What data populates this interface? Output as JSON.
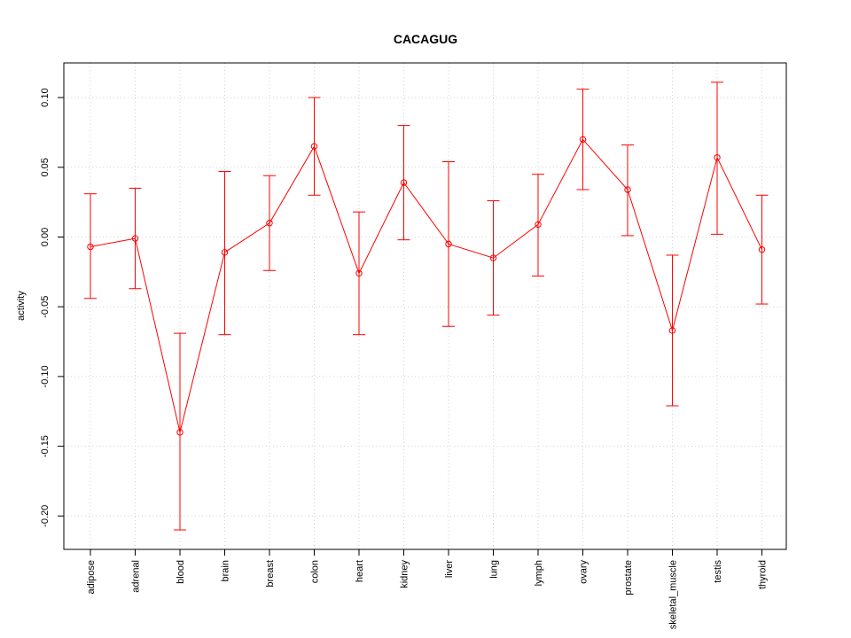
{
  "chart_data": {
    "type": "line",
    "title": "CACAGUG",
    "xlabel": "",
    "ylabel": "activity",
    "ylim": [
      -0.225,
      0.124
    ],
    "yticks": [
      -0.2,
      -0.15,
      -0.1,
      -0.05,
      0.0,
      0.05,
      0.1
    ],
    "ytick_labels": [
      "-0.20",
      "-0.15",
      "-0.10",
      "-0.05",
      "0.00",
      "0.05",
      "0.10"
    ],
    "grid": true,
    "categories": [
      "adipose",
      "adrenal",
      "blood",
      "brain",
      "breast",
      "colon",
      "heart",
      "kidney",
      "liver",
      "lung",
      "lymph",
      "ovary",
      "prostate",
      "skeletal_muscle",
      "testis",
      "thyroid"
    ],
    "values": [
      -0.007,
      -0.001,
      -0.14,
      -0.011,
      0.01,
      0.065,
      -0.026,
      0.039,
      -0.005,
      -0.015,
      0.009,
      0.07,
      0.034,
      -0.067,
      0.057,
      -0.009
    ],
    "upper": [
      0.031,
      0.035,
      -0.069,
      0.047,
      0.044,
      0.1,
      0.018,
      0.08,
      0.054,
      0.026,
      0.045,
      0.106,
      0.066,
      -0.013,
      0.111,
      0.03
    ],
    "lower": [
      -0.044,
      -0.037,
      -0.21,
      -0.07,
      -0.024,
      0.03,
      -0.07,
      -0.002,
      -0.064,
      -0.056,
      -0.028,
      0.034,
      0.001,
      -0.121,
      0.002,
      -0.048
    ],
    "color": "#ff0000"
  }
}
